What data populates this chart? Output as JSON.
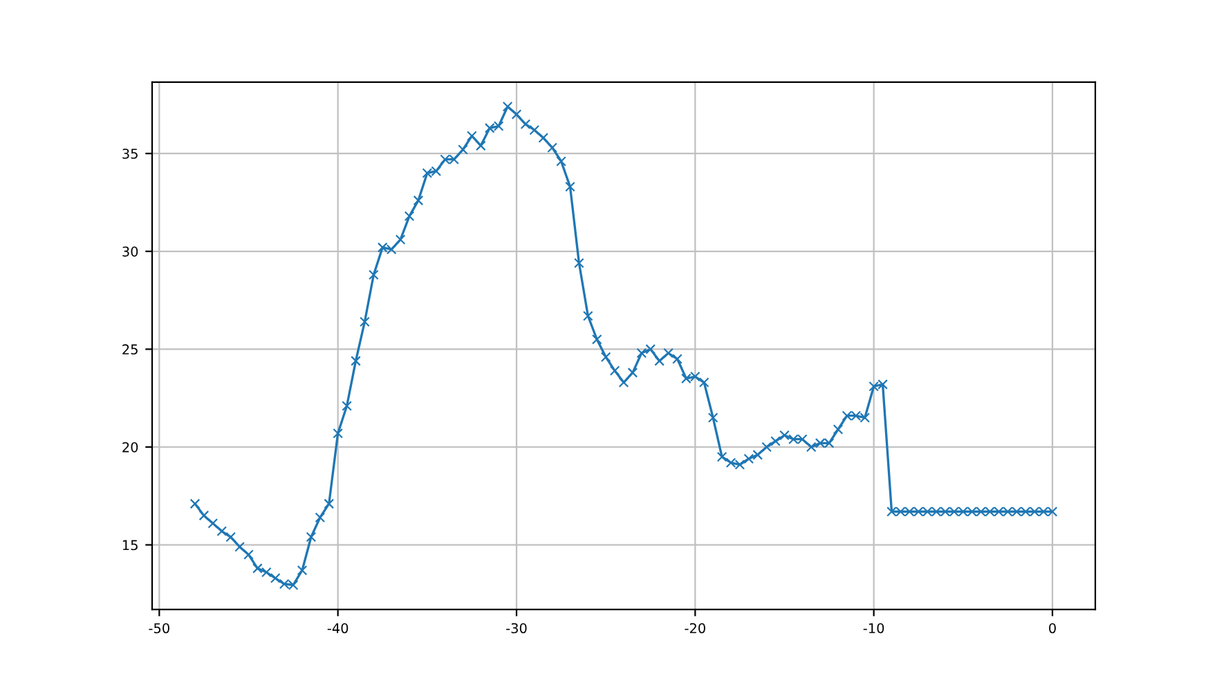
{
  "chart_data": {
    "type": "line",
    "x": [
      -48,
      -47.5,
      -47,
      -46.5,
      -46,
      -45.5,
      -45,
      -44.5,
      -44,
      -43.5,
      -43,
      -42.5,
      -42,
      -41.5,
      -41,
      -40.5,
      -40,
      -39.5,
      -39,
      -38.5,
      -38,
      -37.5,
      -37,
      -36.5,
      -36,
      -35.5,
      -35,
      -34.5,
      -34,
      -33.5,
      -33,
      -32.5,
      -32,
      -31.5,
      -31,
      -30.5,
      -30,
      -29.5,
      -29,
      -28.5,
      -28,
      -27.5,
      -27,
      -26.5,
      -26,
      -25.5,
      -25,
      -24.5,
      -24,
      -23.5,
      -23,
      -22.5,
      -22,
      -21.5,
      -21,
      -20.5,
      -20,
      -19.5,
      -19,
      -18.5,
      -18,
      -17.5,
      -17,
      -16.5,
      -16,
      -15.5,
      -15,
      -14.5,
      -14,
      -13.5,
      -13,
      -12.5,
      -12,
      -11.5,
      -11,
      -10.5,
      -10,
      -9.5,
      -9,
      -8.5,
      -8,
      -7.5,
      -7,
      -6.5,
      -6,
      -5.5,
      -5,
      -4.5,
      -4,
      -3.5,
      -3,
      -2.5,
      -2,
      -1.5,
      -1,
      -0.5,
      0
    ],
    "series": [
      {
        "color": "#1f77b4",
        "values": [
          17.1,
          16.5,
          16.1,
          15.7,
          15.4,
          14.9,
          14.5,
          13.8,
          13.6,
          13.3,
          13.0,
          12.95,
          13.7,
          15.4,
          16.4,
          17.1,
          20.7,
          22.1,
          24.4,
          26.4,
          28.8,
          30.2,
          30.1,
          30.6,
          31.8,
          32.6,
          34.0,
          34.1,
          34.7,
          34.7,
          35.2,
          35.9,
          35.4,
          36.3,
          36.4,
          37.4,
          37.0,
          36.5,
          36.2,
          35.8,
          35.3,
          34.6,
          33.3,
          29.4,
          26.7,
          25.5,
          24.6,
          23.9,
          23.3,
          23.8,
          24.8,
          25.0,
          24.4,
          24.8,
          24.5,
          23.5,
          23.6,
          23.3,
          21.5,
          19.5,
          19.2,
          19.1,
          19.4,
          19.6,
          20.0,
          20.3,
          20.6,
          20.4,
          20.4,
          20.0,
          20.2,
          20.2,
          20.9,
          21.6,
          21.6,
          21.5,
          23.1,
          23.2,
          16.7,
          16.7,
          16.7,
          16.7,
          16.7,
          16.7,
          16.7,
          16.7,
          16.7,
          16.7,
          16.7,
          16.7,
          16.7,
          16.7,
          16.7,
          16.7,
          16.7,
          16.7,
          16.7
        ]
      }
    ],
    "xlim": [
      -50.4,
      2.4
    ],
    "ylim": [
      11.7,
      38.65
    ],
    "xticks": [
      -50,
      -40,
      -30,
      -20,
      -10,
      0
    ],
    "yticks": [
      15,
      20,
      25,
      30,
      35
    ],
    "grid": true,
    "marker": "cross",
    "line_style": "solid"
  }
}
